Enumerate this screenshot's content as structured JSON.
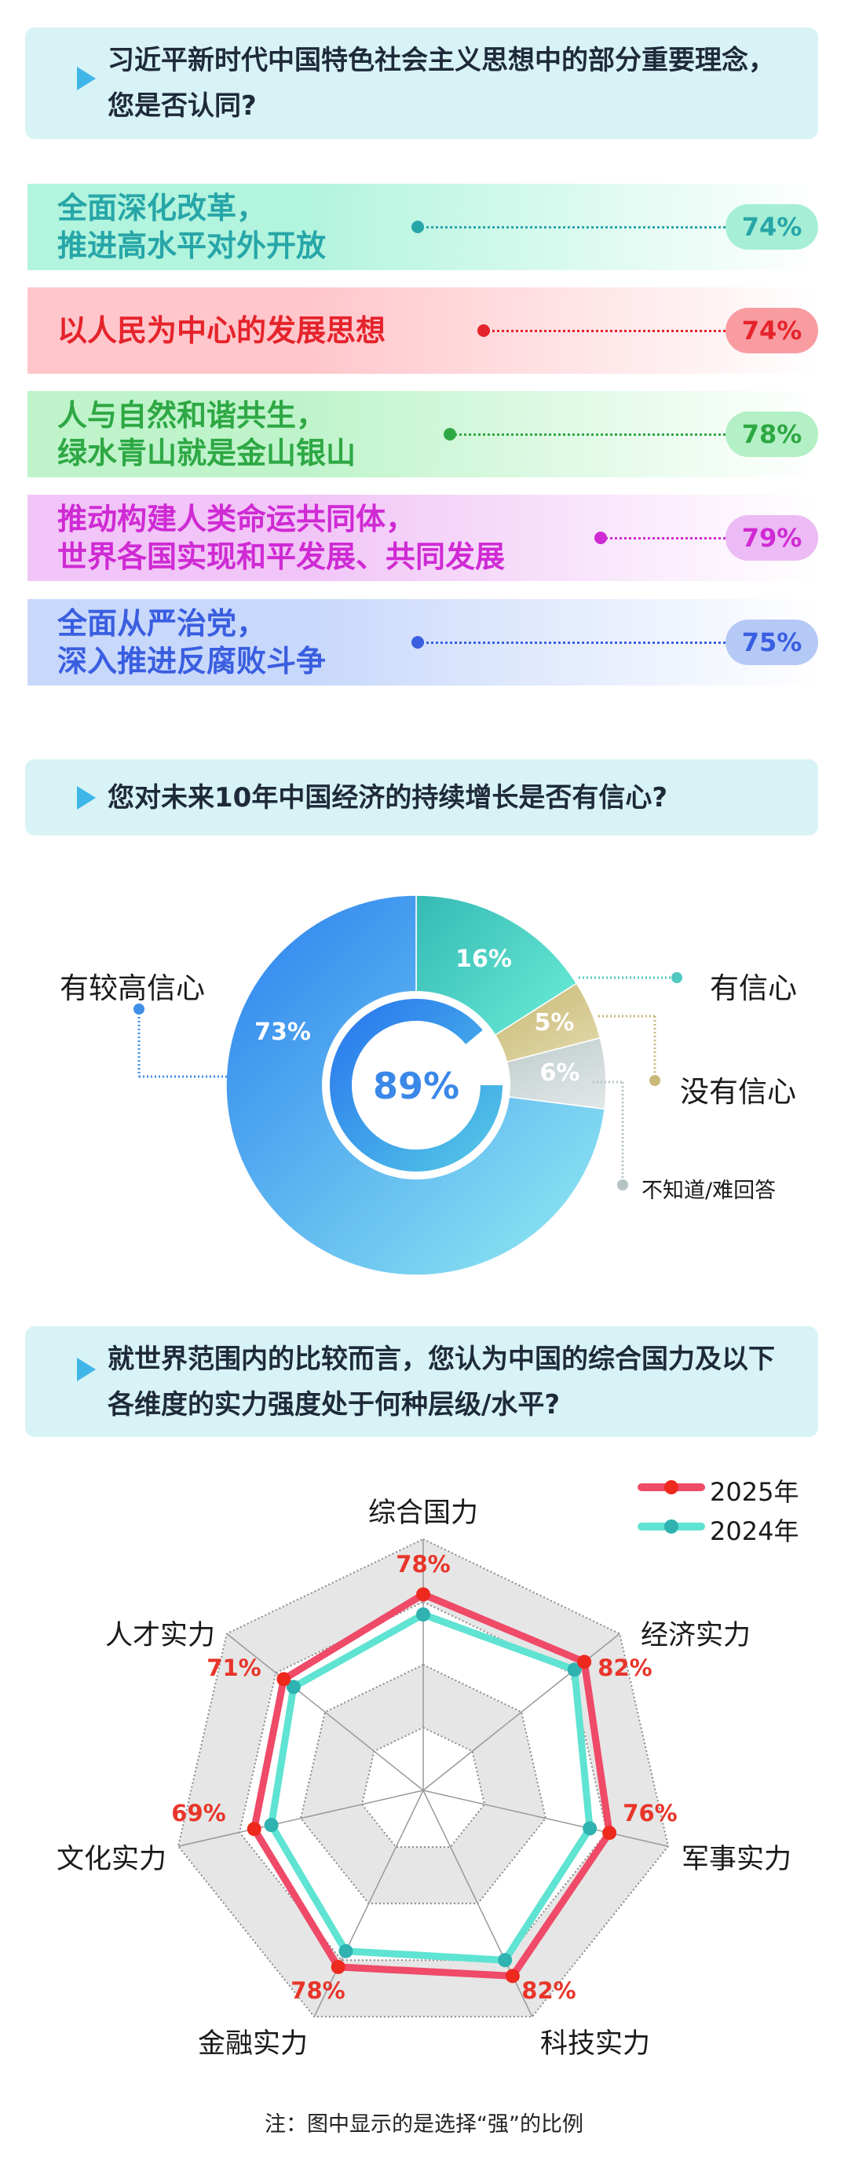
{
  "section1": {
    "question": "习近平新时代中国特色社会主义思想中的部分重要理念，您是否认同?",
    "items": [
      {
        "label": "全面深化改革，\n推进高水平对外开放",
        "value": "74%",
        "color": "#27a6a8",
        "bg": "#b2f4de",
        "pill": "#a6efd6"
      },
      {
        "label": "以人民为中心的发展思想",
        "value": "74%",
        "color": "#e5232b",
        "bg": "#ffc6cb",
        "pill": "#f89ca2"
      },
      {
        "label": "人与自然和谐共生，\n绿水青山就是金山银山",
        "value": "78%",
        "color": "#2ea844",
        "bg": "#bff4cb",
        "pill": "#b4f0c5"
      },
      {
        "label": "推动构建人类命运共同体，\n世界各国实现和平发展、共同发展",
        "value": "79%",
        "color": "#cf2ad4",
        "bg": "#f1c5f7",
        "pill": "#ecbaf4"
      },
      {
        "label": "全面从严治党，\n深入推进反腐败斗争",
        "value": "75%",
        "color": "#3a5ee0",
        "bg": "#c8d8fb",
        "pill": "#b5c9f7"
      }
    ]
  },
  "section2": {
    "question": "您对未来10年中国经济的持续增长是否有信心?"
  },
  "section3": {
    "question": "就世界范围内的比较而言，您认为中国的综合国力及以下各维度的实力强度处于何种层级/水平?",
    "note": "注：图中显示的是选择“强”的比例"
  },
  "chart_data": [
    {
      "type": "pie",
      "donut": true,
      "center_label": "89%",
      "center_value": 89,
      "slices": [
        {
          "name": "有信心",
          "value": 16,
          "label": "16%",
          "color": "#4fd8c8"
        },
        {
          "name": "没有信心",
          "value": 5,
          "label": "5%",
          "color": "#cdbd78"
        },
        {
          "name": "不知道/难回答",
          "value": 6,
          "label": "6%",
          "color": "#c4cfd0"
        },
        {
          "name": "有较高信心",
          "value": 73,
          "label": "73%",
          "color": "#3f96f0"
        }
      ]
    },
    {
      "type": "radar",
      "axes": [
        "综合国力",
        "经济实力",
        "军事实力",
        "科技实力",
        "金融实力",
        "文化实力",
        "人才实力"
      ],
      "range": [
        0,
        100
      ],
      "series": [
        {
          "name": "2025年",
          "color": "#ef4a68",
          "point_color": "#ee2a1e",
          "values": [
            78,
            82,
            76,
            82,
            78,
            69,
            71
          ],
          "labels": [
            "78%",
            "82%",
            "76%",
            "82%",
            "78%",
            "69%",
            "71%"
          ]
        },
        {
          "name": "2024年",
          "color": "#5fe3d2",
          "point_color": "#2fb2b0",
          "values": [
            70,
            77,
            68,
            75,
            71,
            62,
            66
          ]
        }
      ],
      "legend": "top-right"
    }
  ]
}
